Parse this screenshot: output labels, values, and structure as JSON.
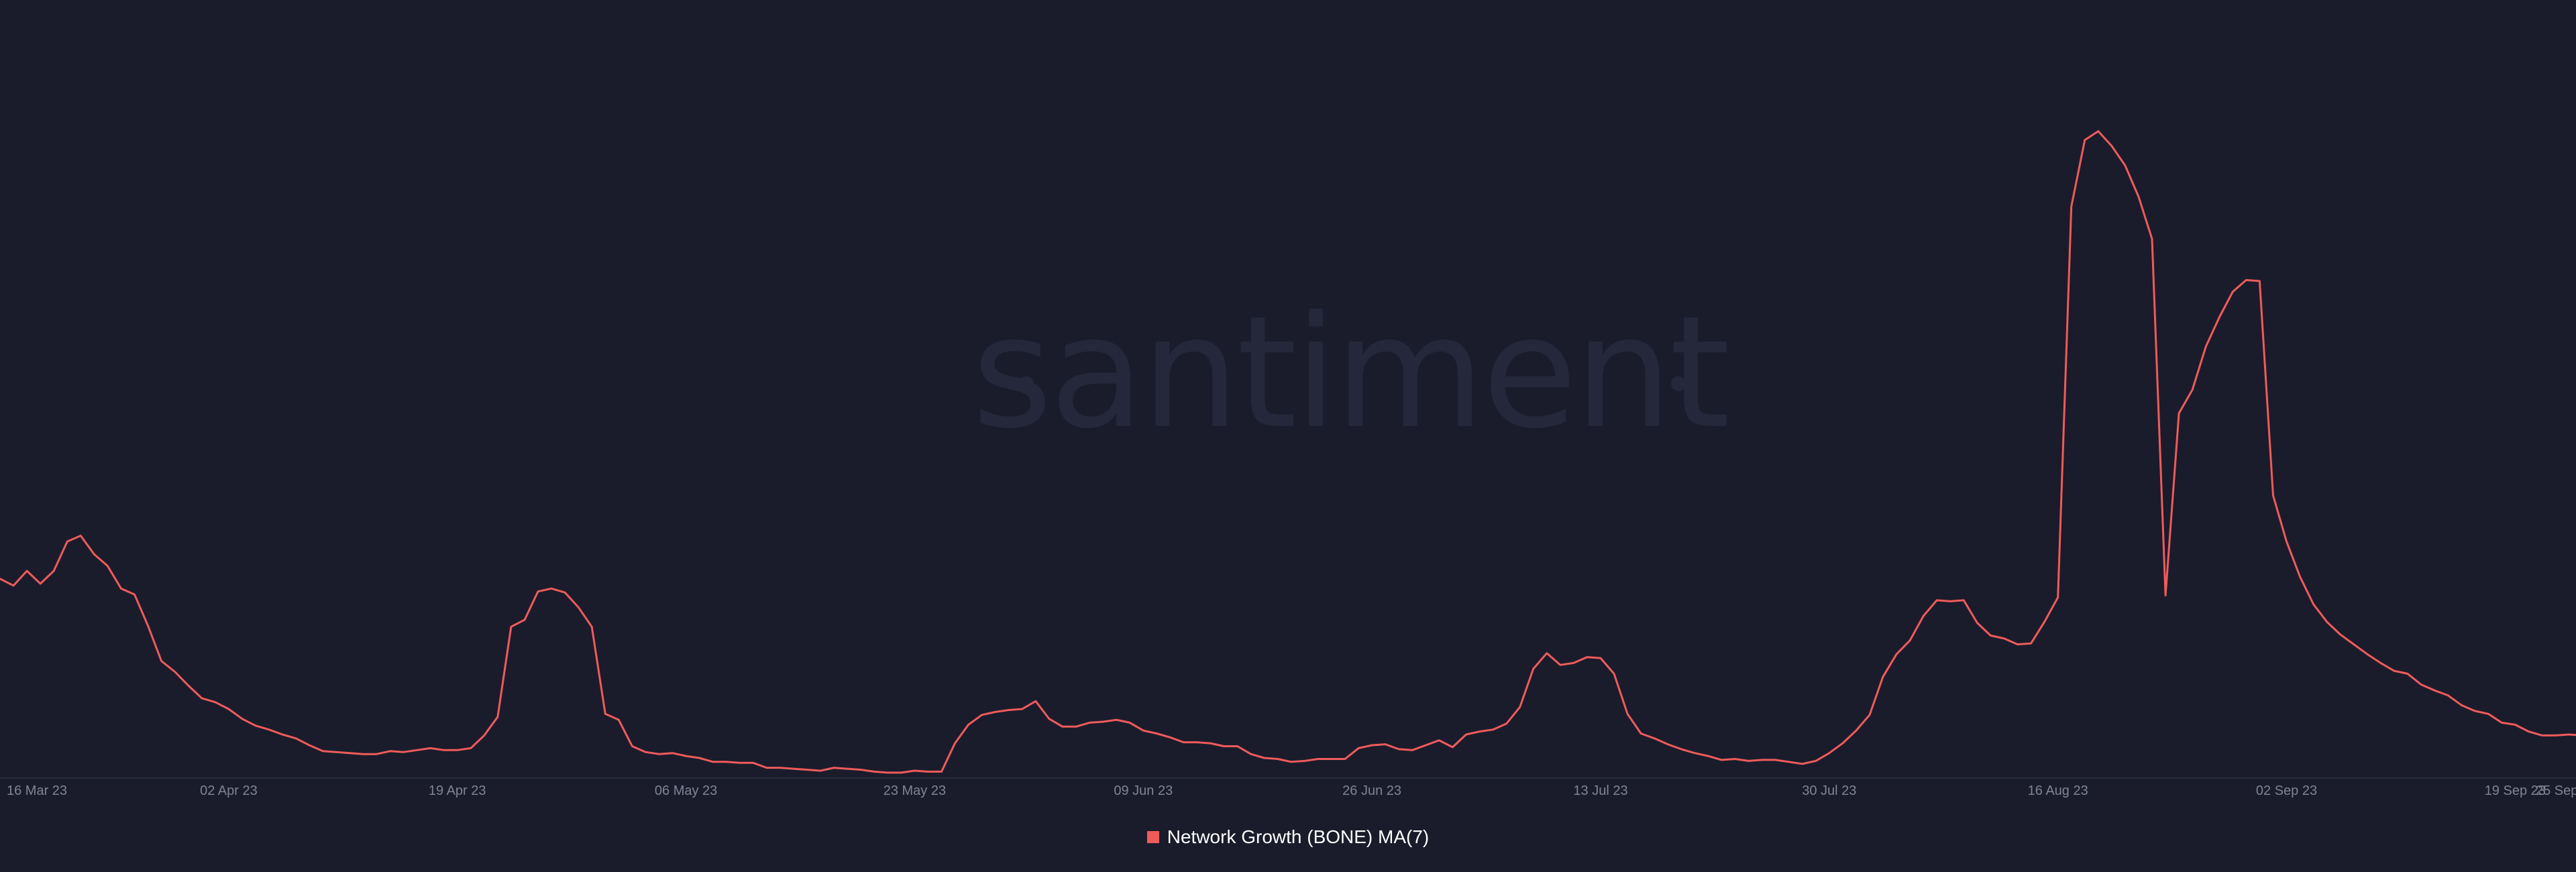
{
  "watermark": "santiment",
  "colors": {
    "background": "#1a1c2b",
    "series": "#ef5b5b",
    "tick_text": "#7f8494",
    "watermark": "#25283a",
    "legend_text": "#ffffff"
  },
  "legend": {
    "label": "Network Growth (BONE) MA(7)",
    "placement": "bottom-center"
  },
  "chart_data": {
    "type": "line",
    "title": "",
    "xlabel": "",
    "ylabel": "",
    "x_range": [
      "2023-03-16",
      "2023-09-25"
    ],
    "y_axis_shown": false,
    "grid": false,
    "x_ticks": [
      {
        "date": "2023-03-16",
        "label": "16 Mar 23"
      },
      {
        "date": "2023-04-02",
        "label": "02 Apr 23"
      },
      {
        "date": "2023-04-19",
        "label": "19 Apr 23"
      },
      {
        "date": "2023-05-06",
        "label": "06 May 23"
      },
      {
        "date": "2023-05-23",
        "label": "23 May 23"
      },
      {
        "date": "2023-06-09",
        "label": "09 Jun 23"
      },
      {
        "date": "2023-06-26",
        "label": "26 Jun 23"
      },
      {
        "date": "2023-07-13",
        "label": "13 Jul 23"
      },
      {
        "date": "2023-07-30",
        "label": "30 Jul 23"
      },
      {
        "date": "2023-08-16",
        "label": "16 Aug 23"
      },
      {
        "date": "2023-09-02",
        "label": "02 Sep 23"
      },
      {
        "date": "2023-09-19",
        "label": "19 Sep 23"
      },
      {
        "date": "2023-09-25",
        "label": "25 Sep"
      }
    ],
    "series": [
      {
        "name": "Network Growth (BONE) MA(7)",
        "points": [
          [
            "2023-03-16",
            366
          ],
          [
            "2023-03-17",
            352
          ],
          [
            "2023-03-18",
            382
          ],
          [
            "2023-03-19",
            356
          ],
          [
            "2023-03-20",
            382
          ],
          [
            "2023-03-21",
            442
          ],
          [
            "2023-03-22",
            454
          ],
          [
            "2023-03-23",
            416
          ],
          [
            "2023-03-24",
            392
          ],
          [
            "2023-03-25",
            346
          ],
          [
            "2023-03-26",
            334
          ],
          [
            "2023-03-27",
            270
          ],
          [
            "2023-03-28",
            198
          ],
          [
            "2023-03-29",
            176
          ],
          [
            "2023-03-30",
            148
          ],
          [
            "2023-03-31",
            122
          ],
          [
            "2023-04-01",
            114
          ],
          [
            "2023-04-02",
            100
          ],
          [
            "2023-04-03",
            80
          ],
          [
            "2023-04-04",
            66
          ],
          [
            "2023-04-05",
            58
          ],
          [
            "2023-04-06",
            48
          ],
          [
            "2023-04-07",
            40
          ],
          [
            "2023-04-08",
            26
          ],
          [
            "2023-04-09",
            14
          ],
          [
            "2023-04-10",
            12
          ],
          [
            "2023-04-11",
            10
          ],
          [
            "2023-04-12",
            8
          ],
          [
            "2023-04-13",
            8
          ],
          [
            "2023-04-14",
            14
          ],
          [
            "2023-04-15",
            12
          ],
          [
            "2023-04-16",
            16
          ],
          [
            "2023-04-17",
            20
          ],
          [
            "2023-04-18",
            16
          ],
          [
            "2023-04-19",
            16
          ],
          [
            "2023-04-20",
            20
          ],
          [
            "2023-04-21",
            46
          ],
          [
            "2023-04-22",
            84
          ],
          [
            "2023-04-23",
            268
          ],
          [
            "2023-04-24",
            282
          ],
          [
            "2023-04-25",
            340
          ],
          [
            "2023-04-26",
            346
          ],
          [
            "2023-04-27",
            338
          ],
          [
            "2023-04-28",
            308
          ],
          [
            "2023-04-29",
            268
          ],
          [
            "2023-04-30",
            90
          ],
          [
            "2023-05-01",
            78
          ],
          [
            "2023-05-02",
            24
          ],
          [
            "2023-05-03",
            12
          ],
          [
            "2023-05-04",
            8
          ],
          [
            "2023-05-05",
            10
          ],
          [
            "2023-05-06",
            4
          ],
          [
            "2023-05-07",
            0
          ],
          [
            "2023-05-08",
            -8
          ],
          [
            "2023-05-09",
            -8
          ],
          [
            "2023-05-10",
            -10
          ],
          [
            "2023-05-11",
            -10
          ],
          [
            "2023-05-12",
            -20
          ],
          [
            "2023-05-13",
            -20
          ],
          [
            "2023-05-14",
            -22
          ],
          [
            "2023-05-15",
            -24
          ],
          [
            "2023-05-16",
            -26
          ],
          [
            "2023-05-17",
            -20
          ],
          [
            "2023-05-18",
            -22
          ],
          [
            "2023-05-19",
            -24
          ],
          [
            "2023-05-20",
            -28
          ],
          [
            "2023-05-21",
            -30
          ],
          [
            "2023-05-22",
            -30
          ],
          [
            "2023-05-23",
            -26
          ],
          [
            "2023-05-24",
            -28
          ],
          [
            "2023-05-25",
            -28
          ],
          [
            "2023-05-26",
            30
          ],
          [
            "2023-05-27",
            68
          ],
          [
            "2023-05-28",
            88
          ],
          [
            "2023-05-29",
            94
          ],
          [
            "2023-05-30",
            98
          ],
          [
            "2023-05-31",
            100
          ],
          [
            "2023-06-01",
            116
          ],
          [
            "2023-06-02",
            80
          ],
          [
            "2023-06-03",
            64
          ],
          [
            "2023-06-04",
            64
          ],
          [
            "2023-06-05",
            72
          ],
          [
            "2023-06-06",
            74
          ],
          [
            "2023-06-07",
            78
          ],
          [
            "2023-06-08",
            72
          ],
          [
            "2023-06-09",
            56
          ],
          [
            "2023-06-10",
            50
          ],
          [
            "2023-06-11",
            42
          ],
          [
            "2023-06-12",
            32
          ],
          [
            "2023-06-13",
            32
          ],
          [
            "2023-06-14",
            30
          ],
          [
            "2023-06-15",
            24
          ],
          [
            "2023-06-16",
            24
          ],
          [
            "2023-06-17",
            8
          ],
          [
            "2023-06-18",
            0
          ],
          [
            "2023-06-19",
            -2
          ],
          [
            "2023-06-20",
            -8
          ],
          [
            "2023-06-21",
            -6
          ],
          [
            "2023-06-22",
            -2
          ],
          [
            "2023-06-23",
            -2
          ],
          [
            "2023-06-24",
            -2
          ],
          [
            "2023-06-25",
            20
          ],
          [
            "2023-06-26",
            26
          ],
          [
            "2023-06-27",
            28
          ],
          [
            "2023-06-28",
            18
          ],
          [
            "2023-06-29",
            16
          ],
          [
            "2023-06-30",
            26
          ],
          [
            "2023-07-01",
            36
          ],
          [
            "2023-07-02",
            22
          ],
          [
            "2023-07-03",
            48
          ],
          [
            "2023-07-04",
            54
          ],
          [
            "2023-07-05",
            58
          ],
          [
            "2023-07-06",
            70
          ],
          [
            "2023-07-07",
            104
          ],
          [
            "2023-07-08",
            182
          ],
          [
            "2023-07-09",
            214
          ],
          [
            "2023-07-10",
            190
          ],
          [
            "2023-07-11",
            194
          ],
          [
            "2023-07-12",
            206
          ],
          [
            "2023-07-13",
            204
          ],
          [
            "2023-07-14",
            172
          ],
          [
            "2023-07-15",
            90
          ],
          [
            "2023-07-16",
            50
          ],
          [
            "2023-07-17",
            40
          ],
          [
            "2023-07-18",
            28
          ],
          [
            "2023-07-19",
            18
          ],
          [
            "2023-07-20",
            10
          ],
          [
            "2023-07-21",
            4
          ],
          [
            "2023-07-22",
            -4
          ],
          [
            "2023-07-23",
            -2
          ],
          [
            "2023-07-24",
            -6
          ],
          [
            "2023-07-25",
            -4
          ],
          [
            "2023-07-26",
            -4
          ],
          [
            "2023-07-27",
            -8
          ],
          [
            "2023-07-28",
            -12
          ],
          [
            "2023-07-29",
            -6
          ],
          [
            "2023-07-30",
            10
          ],
          [
            "2023-07-31",
            30
          ],
          [
            "2023-08-01",
            56
          ],
          [
            "2023-08-02",
            88
          ],
          [
            "2023-08-03",
            166
          ],
          [
            "2023-08-04",
            212
          ],
          [
            "2023-08-05",
            240
          ],
          [
            "2023-08-06",
            290
          ],
          [
            "2023-08-07",
            322
          ],
          [
            "2023-08-08",
            320
          ],
          [
            "2023-08-09",
            322
          ],
          [
            "2023-08-10",
            276
          ],
          [
            "2023-08-11",
            250
          ],
          [
            "2023-08-12",
            244
          ],
          [
            "2023-08-13",
            232
          ],
          [
            "2023-08-14",
            234
          ],
          [
            "2023-08-15",
            278
          ],
          [
            "2023-08-16",
            328
          ],
          [
            "2023-08-17",
            1126
          ],
          [
            "2023-08-18",
            1262
          ],
          [
            "2023-08-19",
            1280
          ],
          [
            "2023-08-20",
            1250
          ],
          [
            "2023-08-21",
            1210
          ],
          [
            "2023-08-22",
            1146
          ],
          [
            "2023-08-23",
            1060
          ],
          [
            "2023-08-24",
            332
          ],
          [
            "2023-08-25",
            704
          ],
          [
            "2023-08-26",
            752
          ],
          [
            "2023-08-27",
            840
          ],
          [
            "2023-08-28",
            900
          ],
          [
            "2023-08-29",
            952
          ],
          [
            "2023-08-30",
            976
          ],
          [
            "2023-08-31",
            974
          ],
          [
            "2023-09-01",
            536
          ],
          [
            "2023-09-02",
            442
          ],
          [
            "2023-09-03",
            370
          ],
          [
            "2023-09-04",
            314
          ],
          [
            "2023-09-05",
            278
          ],
          [
            "2023-09-06",
            252
          ],
          [
            "2023-09-07",
            232
          ],
          [
            "2023-09-08",
            212
          ],
          [
            "2023-09-09",
            194
          ],
          [
            "2023-09-10",
            178
          ],
          [
            "2023-09-11",
            172
          ],
          [
            "2023-09-12",
            150
          ],
          [
            "2023-09-13",
            138
          ],
          [
            "2023-09-14",
            128
          ],
          [
            "2023-09-15",
            108
          ],
          [
            "2023-09-16",
            96
          ],
          [
            "2023-09-17",
            90
          ],
          [
            "2023-09-18",
            72
          ],
          [
            "2023-09-19",
            68
          ],
          [
            "2023-09-20",
            54
          ],
          [
            "2023-09-21",
            46
          ],
          [
            "2023-09-22",
            46
          ],
          [
            "2023-09-23",
            48
          ],
          [
            "2023-09-24",
            46
          ],
          [
            "2023-09-25",
            42
          ],
          [
            "2023-09-26",
            38
          ]
        ]
      }
    ]
  }
}
